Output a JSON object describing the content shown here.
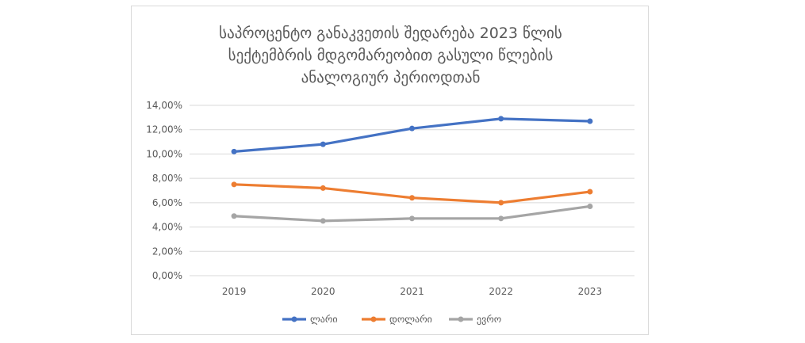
{
  "chart_data": {
    "type": "line",
    "title_lines": [
      "საპროცენტო განაკვეთის შედარება 2023 წლის",
      "სექტემბრის მდგომარეობით გასული წლების",
      "ანალოგიურ პერიოდთან"
    ],
    "categories": [
      "2019",
      "2020",
      "2021",
      "2022",
      "2023"
    ],
    "y_ticks": [
      "0,00%",
      "2,00%",
      "4,00%",
      "6,00%",
      "8,00%",
      "10,00%",
      "12,00%",
      "14,00%"
    ],
    "ylim": [
      0,
      14
    ],
    "grid": true,
    "legend_position": "bottom",
    "series": [
      {
        "name": "ლარი",
        "color": "#4472c4",
        "values": [
          10.2,
          10.8,
          12.1,
          12.9,
          12.7
        ]
      },
      {
        "name": "დოლარი",
        "color": "#ed7d31",
        "values": [
          7.5,
          7.2,
          6.4,
          6.0,
          6.9
        ]
      },
      {
        "name": "ევრო",
        "color": "#a5a5a5",
        "values": [
          4.9,
          4.5,
          4.7,
          4.7,
          5.7
        ]
      }
    ]
  }
}
